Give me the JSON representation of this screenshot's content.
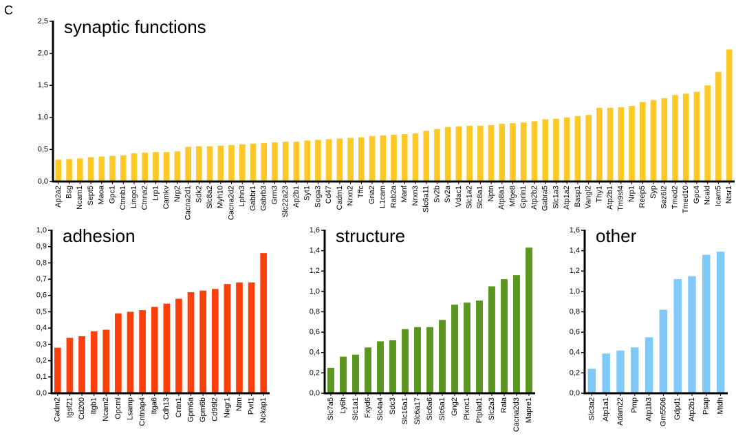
{
  "panel_label": "C",
  "chart_data": [
    {
      "type": "bar",
      "title": "synaptic functions",
      "color": "#fdc828",
      "categories": [
        "Ap2a2",
        "Bsg",
        "Ncam1",
        "Sept5",
        "Maoa",
        "Gpc1",
        "Ctnnb1",
        "Lingo1",
        "Ctnna2",
        "Lrp1",
        "Camkv",
        "Nrp2",
        "Cacna2d1",
        "Sdk2",
        "Slc8a2",
        "Myh10",
        "Cacna2d2",
        "Lphn3",
        "Gabbr1",
        "Gabrb3",
        "Grm3",
        "Slc22a23",
        "Ap2b1",
        "Syt1",
        "Soga3",
        "Cd47",
        "Cadm1",
        "Nrxn2",
        "Tffc",
        "Gria2",
        "L1cam",
        "Rab2a",
        "Manf",
        "Nrxn3",
        "Slc6a11",
        "Sv2b",
        "Sv2a",
        "Vdac1",
        "Slc1a2",
        "Slc8a1",
        "Nptn",
        "Atp8a1",
        "Mfge8",
        "Gprin1",
        "Atp2b2",
        "Gabra5",
        "Slc1a3",
        "Atp1a2",
        "Basp1",
        "Vangl2",
        "Thy1",
        "Atp2b1",
        "Tm9sf4",
        "Nrp1",
        "Reep5",
        "Syp",
        "Sez6l2",
        "Tmed2",
        "Tmed10",
        "Gpc4",
        "Ncald",
        "Icam5",
        "Ntsr1"
      ],
      "values": [
        0.34,
        0.35,
        0.36,
        0.38,
        0.39,
        0.4,
        0.41,
        0.44,
        0.45,
        0.46,
        0.46,
        0.47,
        0.54,
        0.55,
        0.55,
        0.56,
        0.57,
        0.58,
        0.59,
        0.6,
        0.61,
        0.62,
        0.62,
        0.64,
        0.65,
        0.66,
        0.67,
        0.68,
        0.69,
        0.71,
        0.72,
        0.73,
        0.74,
        0.75,
        0.79,
        0.82,
        0.85,
        0.86,
        0.87,
        0.87,
        0.88,
        0.9,
        0.91,
        0.92,
        0.94,
        0.97,
        0.98,
        1.0,
        1.02,
        1.04,
        1.15,
        1.15,
        1.16,
        1.18,
        1.24,
        1.27,
        1.3,
        1.35,
        1.37,
        1.4,
        1.5,
        1.71,
        2.06
      ],
      "ylim": [
        0,
        2.5
      ],
      "yticks": [
        {
          "value": 0,
          "label": "0,0"
        },
        {
          "value": 0.5,
          "label": "0,5"
        },
        {
          "value": 1,
          "label": "1,0"
        },
        {
          "value": 1.5,
          "label": "1,5"
        },
        {
          "value": 2,
          "label": "2,0"
        },
        {
          "value": 2.5,
          "label": "2,5"
        }
      ]
    },
    {
      "type": "bar",
      "title": "adhesion",
      "color": "#fd3f0c",
      "categories": [
        "Cadm2",
        "Igsf21",
        "Cd200",
        "Itgb1",
        "Ncam2",
        "Opcml",
        "Lsamp",
        "Cntnap4",
        "Itga6",
        "Cdh13",
        "Cntn1",
        "Gpm6a",
        "Gpm6b",
        "Cd99l2",
        "Negr1",
        "Ntm",
        "Pvrl1",
        "Nckap1"
      ],
      "values": [
        0.28,
        0.34,
        0.35,
        0.38,
        0.39,
        0.49,
        0.5,
        0.51,
        0.53,
        0.55,
        0.58,
        0.62,
        0.63,
        0.64,
        0.67,
        0.68,
        0.68,
        0.86
      ],
      "ylim": [
        0,
        1
      ],
      "yticks": [
        {
          "value": 0,
          "label": "0,0"
        },
        {
          "value": 0.1,
          "label": "0,1"
        },
        {
          "value": 0.2,
          "label": "0,2"
        },
        {
          "value": 0.3,
          "label": "0,3"
        },
        {
          "value": 0.4,
          "label": "0,4"
        },
        {
          "value": 0.5,
          "label": "0,5"
        },
        {
          "value": 0.6,
          "label": "0,6"
        },
        {
          "value": 0.7,
          "label": "0,7"
        },
        {
          "value": 0.8,
          "label": "0,8"
        },
        {
          "value": 0.9,
          "label": "0,9"
        },
        {
          "value": 1,
          "label": "1,0"
        }
      ]
    },
    {
      "type": "bar",
      "title": "structure",
      "color": "#5a961e",
      "categories": [
        "Slc7a5",
        "Ly6h",
        "Slc1a1",
        "Fxyd6",
        "Slc4a4",
        "Sdc3",
        "Slc16a1",
        "Slc6a17",
        "Slc6a6",
        "Slc6a1",
        "Gng2",
        "Plxnc1",
        "Ptplad1",
        "Slc2a3",
        "Rala",
        "Cacna2d3",
        "Mapre1"
      ],
      "values": [
        0.25,
        0.36,
        0.38,
        0.45,
        0.51,
        0.52,
        0.63,
        0.65,
        0.65,
        0.72,
        0.87,
        0.89,
        0.91,
        1.05,
        1.12,
        1.16,
        1.43
      ],
      "ylim": [
        0,
        1.6
      ],
      "yticks": [
        {
          "value": 0,
          "label": "0,0"
        },
        {
          "value": 0.2,
          "label": "0,2"
        },
        {
          "value": 0.4,
          "label": "0,4"
        },
        {
          "value": 0.6,
          "label": "0,6"
        },
        {
          "value": 0.8,
          "label": "0,8"
        },
        {
          "value": 1,
          "label": "1,0"
        },
        {
          "value": 1.2,
          "label": "1,2"
        },
        {
          "value": 1.4,
          "label": "1,4"
        },
        {
          "value": 1.6,
          "label": "1,6"
        }
      ]
    },
    {
      "type": "bar",
      "title": "other",
      "color": "#80c8f7",
      "categories": [
        "Slc3a2",
        "Atp1a1",
        "Adam22",
        "Pmp",
        "Atp1b3",
        "Gm5506",
        "Gdpd1",
        "Atp2b1",
        "Psap",
        "Mtdh"
      ],
      "values": [
        0.24,
        0.39,
        0.42,
        0.45,
        0.55,
        0.82,
        1.12,
        1.15,
        1.36,
        1.39
      ],
      "ylim": [
        0,
        1.6
      ],
      "yticks": [
        {
          "value": 0,
          "label": "0,0"
        },
        {
          "value": 0.2,
          "label": "0,2"
        },
        {
          "value": 0.4,
          "label": "0,4"
        },
        {
          "value": 0.6,
          "label": "0,6"
        },
        {
          "value": 0.8,
          "label": "0,8"
        },
        {
          "value": 1,
          "label": "1,0"
        },
        {
          "value": 1.2,
          "label": "1,2"
        },
        {
          "value": 1.4,
          "label": "1,4"
        },
        {
          "value": 1.6,
          "label": "1,6"
        }
      ]
    }
  ]
}
